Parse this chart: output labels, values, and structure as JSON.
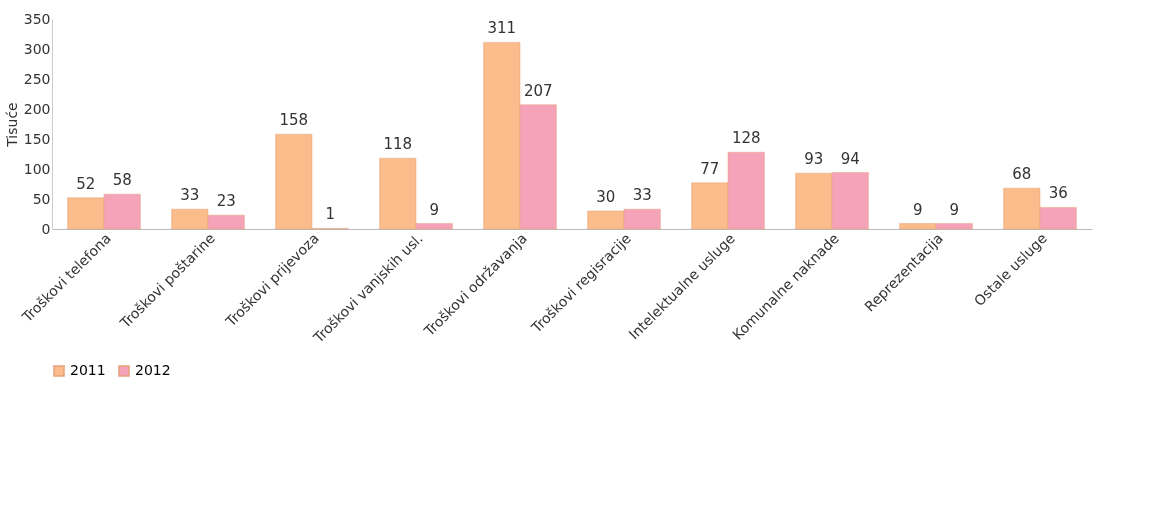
{
  "chart_data": {
    "type": "bar",
    "ylabel": "Tisuće",
    "categories": [
      "Troškovi telefona",
      "Troškovi poštarine",
      "Troškovi prijevoza",
      "Troškovi vanjskih usl.",
      "Troškovi održavanja",
      "Troškovi regisracije",
      "Intelektualne usluge",
      "Komunalne naknade",
      "Reprezentacija",
      "Ostale usluge"
    ],
    "series": [
      {
        "name": "2011",
        "color": "#f9bc8a",
        "values": [
          52,
          33,
          158,
          118,
          311,
          30,
          77,
          93,
          9,
          68
        ]
      },
      {
        "name": "2012",
        "color": "#f5a3b9",
        "values": [
          58,
          23,
          1,
          9,
          207,
          33,
          128,
          94,
          9,
          36
        ]
      }
    ],
    "ylim": [
      0,
      350
    ],
    "yticks": [
      0,
      50,
      100,
      150,
      200,
      250,
      300,
      350
    ],
    "data_labels": true,
    "grid": false,
    "legend": "bottom"
  }
}
